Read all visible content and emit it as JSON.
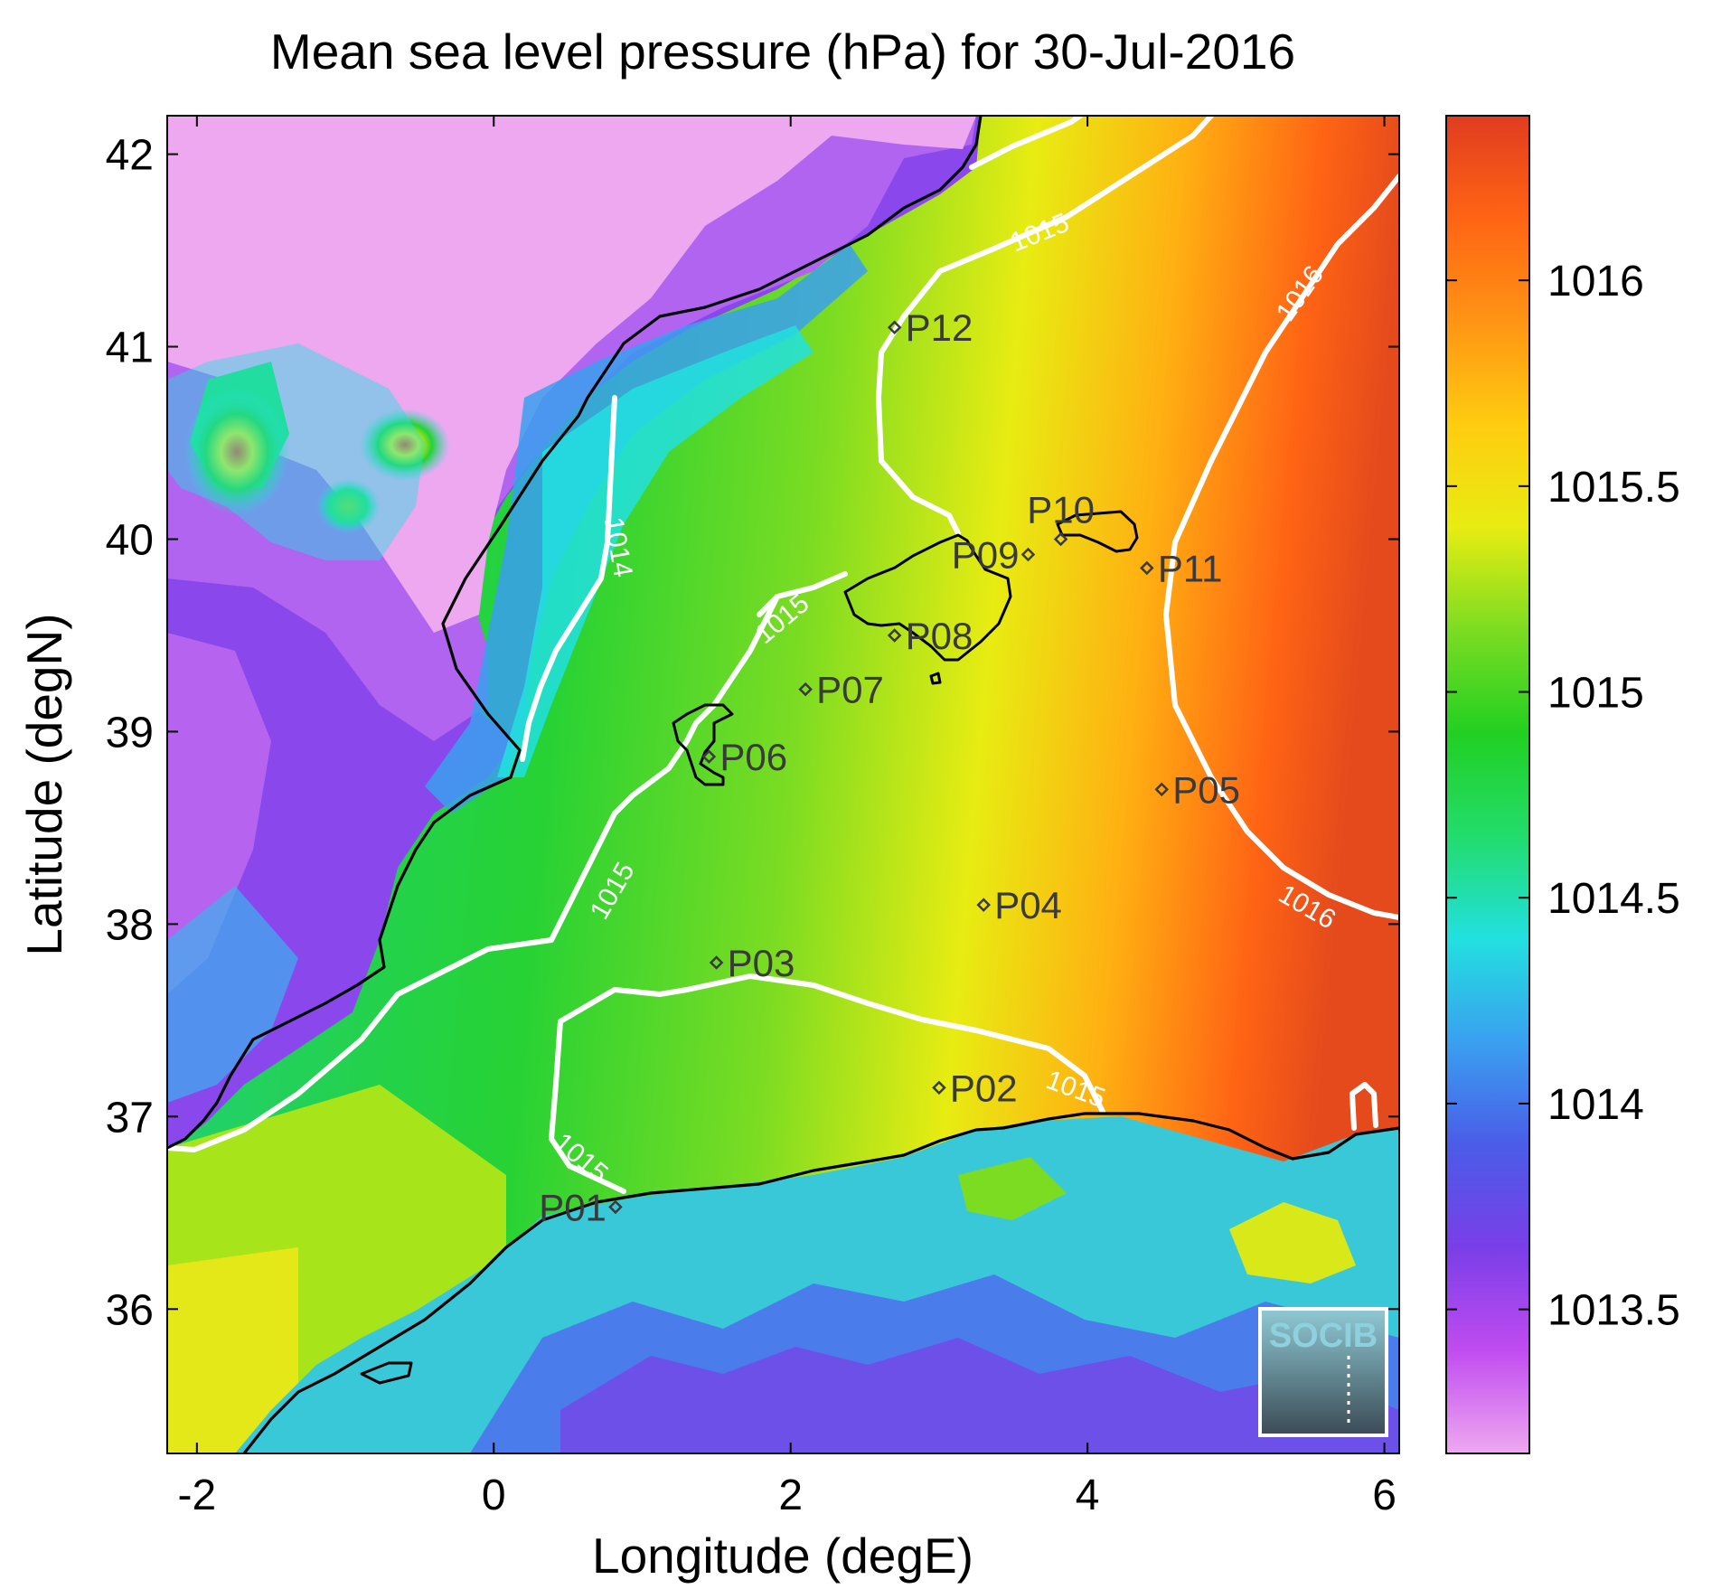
{
  "title": "Mean sea level pressure (hPa) for 30-Jul-2016",
  "xlabel": "Longitude (degE)",
  "ylabel": "Latitude (degN)",
  "x_ticks": [
    -2,
    0,
    2,
    4,
    6
  ],
  "y_ticks": [
    36,
    37,
    38,
    39,
    40,
    41,
    42
  ],
  "x_range": [
    -2.2,
    6.1
  ],
  "y_range": [
    35.25,
    42.2
  ],
  "colorbar": {
    "ticks": [
      1013.5,
      1014,
      1014.5,
      1015,
      1015.5,
      1016
    ],
    "range": [
      1013.15,
      1016.4
    ],
    "stops": [
      "#eea8f0",
      "#c04cf0",
      "#7a3ee8",
      "#4a5ce8",
      "#3aa0f0",
      "#22e0e0",
      "#22dc6c",
      "#22d022",
      "#7cdc22",
      "#e8ec12",
      "#ffcc10",
      "#ff9414",
      "#ff6414",
      "#e03c20"
    ]
  },
  "contours": [
    {
      "label": "1014",
      "label_lon": 0.78,
      "label_lat": 39.95
    },
    {
      "label": "1015",
      "label_lon": 3.7,
      "label_lat": 41.55
    },
    {
      "label": "1016",
      "label_lon": 5.48,
      "label_lat": 41.25
    },
    {
      "label": "1015",
      "label_lon": 1.98,
      "label_lat": 39.55
    },
    {
      "label": "1015",
      "label_lon": 0.85,
      "label_lat": 38.15
    },
    {
      "label": "1016",
      "label_lon": 5.45,
      "label_lat": 38.05
    },
    {
      "label": "1015",
      "label_lon": 3.9,
      "label_lat": 37.1
    },
    {
      "label": "1015",
      "label_lon": 0.55,
      "label_lat": 36.75
    }
  ],
  "stations": [
    {
      "name": "P01",
      "lon": 0.82,
      "lat": 36.53
    },
    {
      "name": "P02",
      "lon": 3.0,
      "lat": 37.15
    },
    {
      "name": "P03",
      "lon": 1.5,
      "lat": 37.8
    },
    {
      "name": "P04",
      "lon": 3.3,
      "lat": 38.1
    },
    {
      "name": "P05",
      "lon": 4.5,
      "lat": 38.7
    },
    {
      "name": "P06",
      "lon": 1.45,
      "lat": 38.87
    },
    {
      "name": "P07",
      "lon": 2.1,
      "lat": 39.22
    },
    {
      "name": "P08",
      "lon": 2.7,
      "lat": 39.5
    },
    {
      "name": "P09",
      "lon": 3.6,
      "lat": 39.92
    },
    {
      "name": "P10",
      "lon": 3.82,
      "lat": 40.0
    },
    {
      "name": "P11",
      "lon": 4.4,
      "lat": 39.85
    },
    {
      "name": "P12",
      "lon": 2.7,
      "lat": 41.1
    }
  ],
  "logo_text": "SOCIB"
}
